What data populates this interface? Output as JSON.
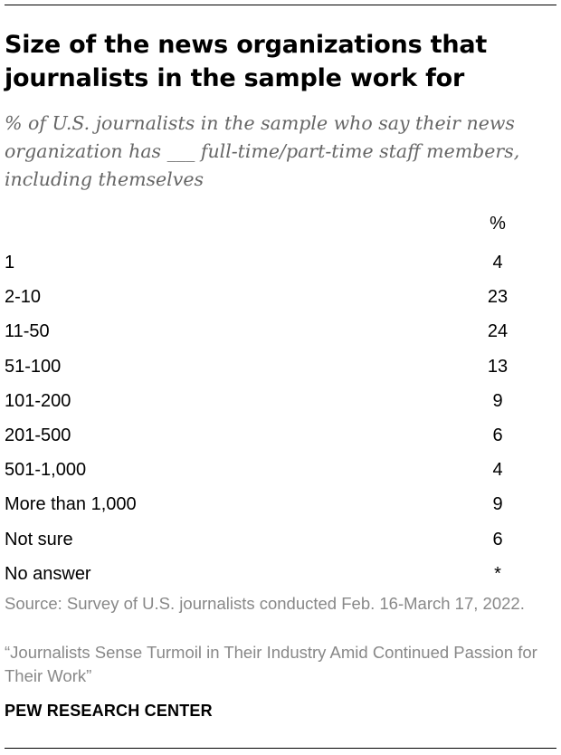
{
  "header": {
    "title": "Size of the news organizations that journalists in the sample work for",
    "subtitle": "% of U.S. journalists in the sample who say their news organization has ___ full-time/part-time staff members, including themselves"
  },
  "table": {
    "column_header": "%"
  },
  "chart_data": {
    "type": "table",
    "title": "Size of the news organizations that journalists in the sample work for",
    "subtitle": "% of U.S. journalists in the sample who say their news organization has ___ full-time/part-time staff members, including themselves",
    "columns": [
      "%"
    ],
    "rows": [
      {
        "label": "1",
        "value": "4"
      },
      {
        "label": "2-10",
        "value": "23"
      },
      {
        "label": "11-50",
        "value": "24"
      },
      {
        "label": "51-100",
        "value": "13"
      },
      {
        "label": "101-200",
        "value": "9"
      },
      {
        "label": "201-500",
        "value": "6"
      },
      {
        "label": "501-1,000",
        "value": "4"
      },
      {
        "label": "More than 1,000",
        "value": "9"
      },
      {
        "label": "Not sure",
        "value": "6"
      },
      {
        "label": "No answer",
        "value": "*"
      }
    ]
  },
  "footer": {
    "source": "Source: Survey of U.S. journalists conducted Feb. 16-March 17, 2022.",
    "report": "“Journalists Sense Turmoil in Their Industry Amid Continued Passion for Their Work”",
    "brand": "PEW RESEARCH CENTER"
  }
}
